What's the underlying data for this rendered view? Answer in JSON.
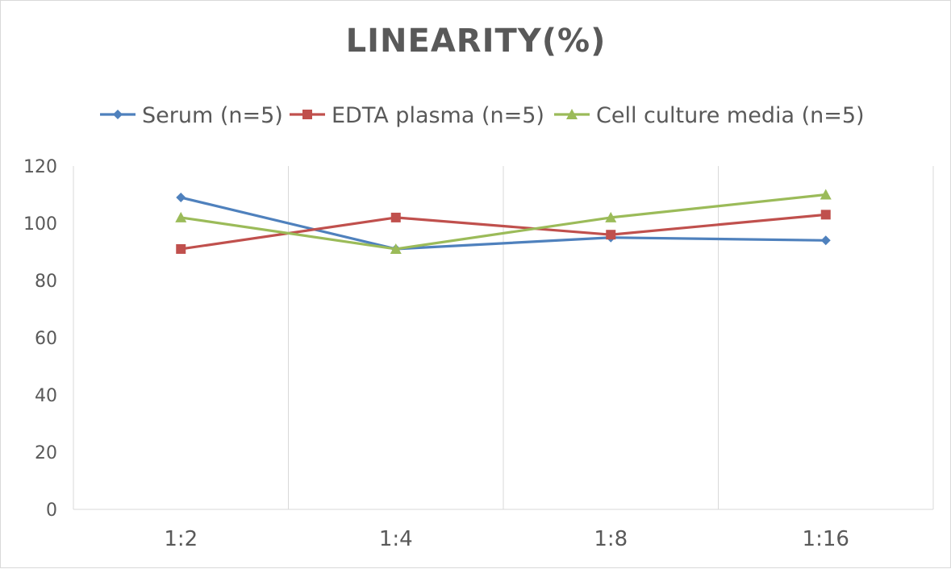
{
  "chart_data": {
    "type": "line",
    "title": "LINEARITY(%)",
    "xlabel": "",
    "ylabel": "",
    "categories": [
      "1:2",
      "1:4",
      "1:8",
      "1:16"
    ],
    "ylim": [
      0,
      120
    ],
    "yticks": [
      0,
      20,
      40,
      60,
      80,
      100,
      120
    ],
    "grid": "vertical",
    "legend_position": "top",
    "series": [
      {
        "name": "Serum (n=5)",
        "values": [
          109,
          91,
          95,
          94
        ],
        "color": "#4f81bd",
        "marker": "diamond"
      },
      {
        "name": "EDTA plasma (n=5)",
        "values": [
          91,
          102,
          96,
          103
        ],
        "color": "#c0504d",
        "marker": "square"
      },
      {
        "name": "Cell culture media (n=5)",
        "values": [
          102,
          91,
          102,
          110
        ],
        "color": "#9bbb59",
        "marker": "triangle"
      }
    ]
  }
}
